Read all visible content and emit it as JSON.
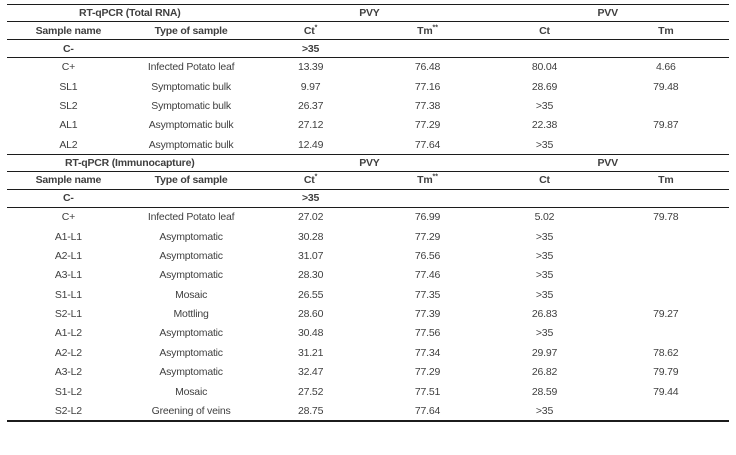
{
  "colors": {
    "text": "#3f3f3f",
    "line": "#1c1c1c",
    "background": "#ffffff"
  },
  "groups": {
    "pvy": "PVY",
    "pvv": "PVV"
  },
  "columns": {
    "sample_name": "Sample name",
    "type_of_sample": "Type of sample",
    "pvy_ct": "Ct",
    "pvy_ct_sup": "*",
    "pvy_tm": "Tm",
    "pvy_tm_sup": "**",
    "pvv_ct": "Ct",
    "pvv_tm": "Tm"
  },
  "sections": [
    {
      "title": "RT-qPCR (Total RNA)",
      "rows": [
        {
          "sample": "C-",
          "type": "",
          "pvy_ct": ">35",
          "pvy_tm": "",
          "pvv_ct": "",
          "pvv_tm": "",
          "bold": true
        },
        {
          "sample": "C+",
          "type": "Infected Potato leaf",
          "pvy_ct": "13.39",
          "pvy_tm": "76.48",
          "pvv_ct": "80.04",
          "pvv_tm": "4.66",
          "bold": false
        },
        {
          "sample": "SL1",
          "type": "Symptomatic bulk",
          "pvy_ct": "9.97",
          "pvy_tm": "77.16",
          "pvv_ct": "28.69",
          "pvv_tm": "79.48",
          "bold": false
        },
        {
          "sample": "SL2",
          "type": "Symptomatic bulk",
          "pvy_ct": "26.37",
          "pvy_tm": "77.38",
          "pvv_ct": ">35",
          "pvv_tm": "",
          "bold": false
        },
        {
          "sample": "AL1",
          "type": "Asymptomatic bulk",
          "pvy_ct": "27.12",
          "pvy_tm": "77.29",
          "pvv_ct": "22.38",
          "pvv_tm": "79.87",
          "bold": false
        },
        {
          "sample": "AL2",
          "type": "Asymptomatic bulk",
          "pvy_ct": "12.49",
          "pvy_tm": "77.64",
          "pvv_ct": ">35",
          "pvv_tm": "",
          "bold": false
        }
      ]
    },
    {
      "title": "RT-qPCR (Immunocapture)",
      "rows": [
        {
          "sample": "C-",
          "type": "",
          "pvy_ct": ">35",
          "pvy_tm": "",
          "pvv_ct": "",
          "pvv_tm": "",
          "bold": true
        },
        {
          "sample": "C+",
          "type": "Infected Potato leaf",
          "pvy_ct": "27.02",
          "pvy_tm": "76.99",
          "pvv_ct": "5.02",
          "pvv_tm": "79.78",
          "bold": false
        },
        {
          "sample": "A1-L1",
          "type": "Asymptomatic",
          "pvy_ct": "30.28",
          "pvy_tm": "77.29",
          "pvv_ct": ">35",
          "pvv_tm": "",
          "bold": false
        },
        {
          "sample": "A2-L1",
          "type": "Asymptomatic",
          "pvy_ct": "31.07",
          "pvy_tm": "76.56",
          "pvv_ct": ">35",
          "pvv_tm": "",
          "bold": false
        },
        {
          "sample": "A3-L1",
          "type": "Asymptomatic",
          "pvy_ct": "28.30",
          "pvy_tm": "77.46",
          "pvv_ct": ">35",
          "pvv_tm": "",
          "bold": false
        },
        {
          "sample": "S1-L1",
          "type": "Mosaic",
          "pvy_ct": "26.55",
          "pvy_tm": "77.35",
          "pvv_ct": ">35",
          "pvv_tm": "",
          "bold": false
        },
        {
          "sample": "S2-L1",
          "type": "Mottling",
          "pvy_ct": "28.60",
          "pvy_tm": "77.39",
          "pvv_ct": "26.83",
          "pvv_tm": "79.27",
          "bold": false
        },
        {
          "sample": "A1-L2",
          "type": "Asymptomatic",
          "pvy_ct": "30.48",
          "pvy_tm": "77.56",
          "pvv_ct": ">35",
          "pvv_tm": "",
          "bold": false
        },
        {
          "sample": "A2-L2",
          "type": "Asymptomatic",
          "pvy_ct": "31.21",
          "pvy_tm": "77.34",
          "pvv_ct": "29.97",
          "pvv_tm": "78.62",
          "bold": false
        },
        {
          "sample": "A3-L2",
          "type": "Asymptomatic",
          "pvy_ct": "32.47",
          "pvy_tm": "77.29",
          "pvv_ct": "26.82",
          "pvv_tm": "79.79",
          "bold": false
        },
        {
          "sample": "S1-L2",
          "type": "Mosaic",
          "pvy_ct": "27.52",
          "pvy_tm": "77.51",
          "pvv_ct": "28.59",
          "pvv_tm": "79.44",
          "bold": false
        },
        {
          "sample": "S2-L2",
          "type": "Greening of veins",
          "pvy_ct": "28.75",
          "pvy_tm": "77.64",
          "pvv_ct": ">35",
          "pvv_tm": "",
          "bold": false
        }
      ]
    }
  ]
}
